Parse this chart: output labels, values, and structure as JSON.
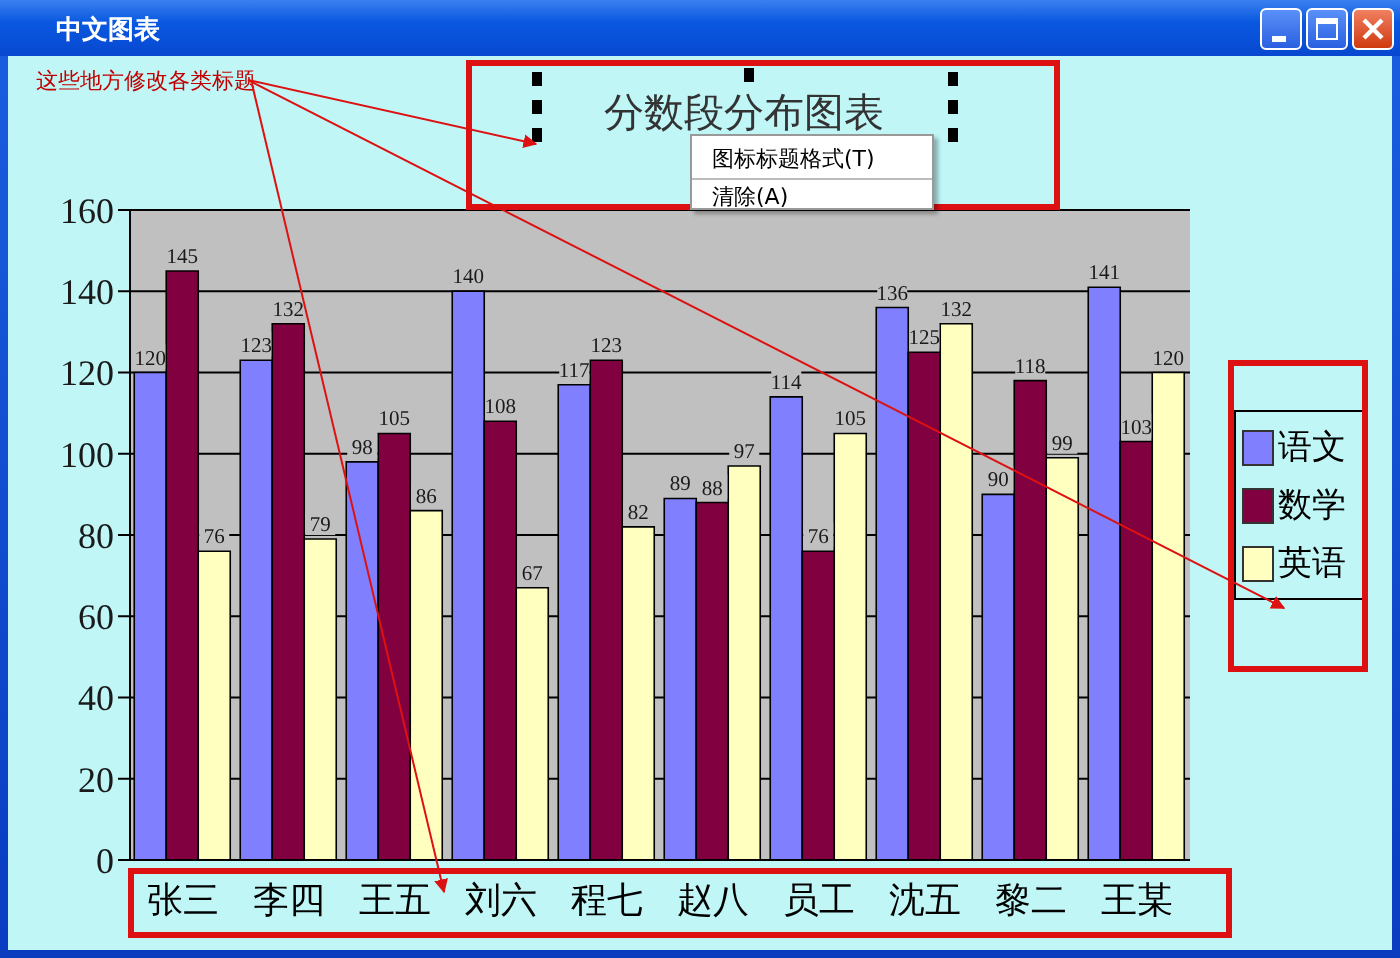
{
  "chart_data": {
    "type": "bar",
    "title": "分数段分布图表",
    "categories": [
      "张三",
      "李四",
      "王五",
      "刘六",
      "程七",
      "赵八",
      "员工",
      "沈五",
      "黎二",
      "王某"
    ],
    "series": [
      {
        "name": "语文",
        "color": "#8080ff",
        "values": [
          120,
          123,
          98,
          140,
          117,
          89,
          114,
          136,
          90,
          141
        ]
      },
      {
        "name": "数学",
        "color": "#800040",
        "values": [
          145,
          132,
          105,
          108,
          123,
          88,
          76,
          125,
          118,
          103
        ]
      },
      {
        "name": "英语",
        "color": "#ffffc0",
        "values": [
          76,
          79,
          86,
          67,
          82,
          97,
          105,
          132,
          99,
          120
        ]
      }
    ],
    "ylim": [
      0,
      160
    ],
    "yticks": [
      0,
      20,
      40,
      60,
      80,
      100,
      120,
      140,
      160
    ],
    "grid": "y",
    "legend": "right",
    "data_labels": true,
    "annotations": [
      "中文图表",
      "这些地方修改各类标题",
      "图标标题格式(T)",
      "清除(A)"
    ]
  }
}
